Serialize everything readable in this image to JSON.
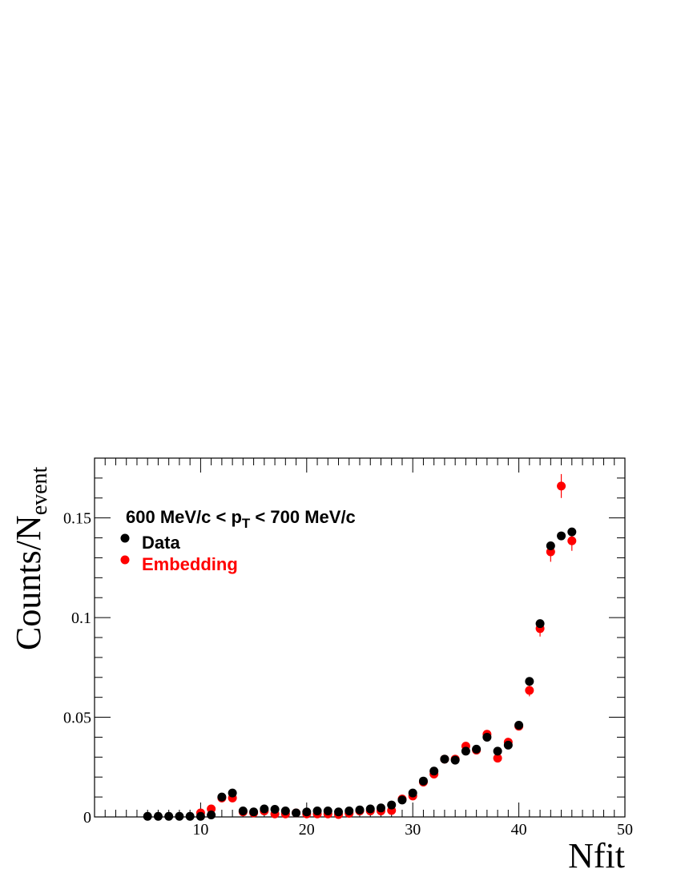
{
  "chart_data": {
    "type": "scatter",
    "title": "",
    "xlabel": "Nfit",
    "ylabel": {
      "main": "Counts/N",
      "sub": "event"
    },
    "xlim": [
      0,
      50
    ],
    "ylim": [
      0,
      0.18
    ],
    "x_ticks": [
      {
        "value": 10,
        "label": "10"
      },
      {
        "value": 20,
        "label": "20"
      },
      {
        "value": 30,
        "label": "30"
      },
      {
        "value": 40,
        "label": "40"
      },
      {
        "value": 50,
        "label": "50"
      }
    ],
    "y_ticks": [
      {
        "value": 0,
        "label": "0"
      },
      {
        "value": 0.05,
        "label": "0.05"
      },
      {
        "value": 0.1,
        "label": "0.1"
      },
      {
        "value": 0.15,
        "label": "0.15"
      }
    ],
    "grid": false,
    "legend_position": "top-left",
    "annotation": {
      "prefix": "600 MeV/c < p",
      "subscript": "T",
      "suffix": " < 700 MeV/c"
    },
    "series": [
      {
        "name": "Data",
        "color": "#000000",
        "x": [
          5,
          6,
          7,
          8,
          9,
          10,
          11,
          12,
          13,
          14,
          15,
          16,
          17,
          18,
          19,
          20,
          21,
          22,
          23,
          24,
          25,
          26,
          27,
          28,
          29,
          30,
          31,
          32,
          33,
          34,
          35,
          36,
          37,
          38,
          39,
          40,
          41,
          42,
          43,
          44,
          45
        ],
        "y": [
          0.0003,
          0.0003,
          0.0003,
          0.0003,
          0.0003,
          0.0003,
          0.001,
          0.01,
          0.012,
          0.003,
          0.0025,
          0.004,
          0.0038,
          0.003,
          0.002,
          0.0025,
          0.003,
          0.003,
          0.0025,
          0.003,
          0.0035,
          0.004,
          0.0045,
          0.006,
          0.0085,
          0.012,
          0.018,
          0.023,
          0.029,
          0.0285,
          0.033,
          0.034,
          0.04,
          0.033,
          0.036,
          0.046,
          0.068,
          0.097,
          0.136,
          0.141,
          0.143
        ],
        "yerr": [
          0,
          0,
          0,
          0,
          0,
          0,
          0,
          0,
          0,
          0,
          0,
          0,
          0,
          0,
          0,
          0,
          0,
          0,
          0,
          0,
          0,
          0,
          0,
          0,
          0,
          0,
          0,
          0,
          0,
          0,
          0,
          0,
          0,
          0,
          0,
          0,
          0,
          0,
          0,
          0,
          0
        ]
      },
      {
        "name": "Embedding",
        "color": "#ff0000",
        "x": [
          10,
          11,
          12,
          13,
          14,
          15,
          16,
          17,
          18,
          19,
          20,
          21,
          22,
          23,
          24,
          25,
          26,
          27,
          28,
          29,
          30,
          31,
          32,
          33,
          34,
          35,
          36,
          37,
          38,
          39,
          40,
          41,
          42,
          43,
          44,
          45
        ],
        "y": [
          0.002,
          0.004,
          0.0095,
          0.0095,
          0.0025,
          0.002,
          0.003,
          0.0015,
          0.0015,
          0.002,
          0.0015,
          0.0015,
          0.0015,
          0.0012,
          0.0018,
          0.003,
          0.003,
          0.003,
          0.0032,
          0.009,
          0.0105,
          0.0175,
          0.0215,
          0.029,
          0.029,
          0.0355,
          0.0335,
          0.0415,
          0.0295,
          0.0375,
          0.0455,
          0.0635,
          0.0945,
          0.133,
          0.166,
          0.1385
        ],
        "yerr": [
          0.002,
          0.001,
          0.001,
          0.001,
          0.001,
          0.001,
          0.001,
          0.001,
          0.001,
          0.001,
          0.001,
          0.001,
          0.001,
          0.001,
          0.001,
          0.001,
          0.001,
          0.001,
          0.001,
          0.001,
          0.001,
          0.001,
          0.001,
          0.001,
          0.001,
          0.001,
          0.001,
          0.002,
          0.002,
          0.002,
          0.002,
          0.003,
          0.004,
          0.005,
          0.006,
          0.005
        ]
      }
    ]
  }
}
